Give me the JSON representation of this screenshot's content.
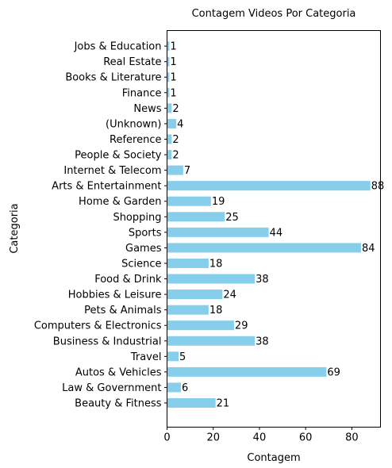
{
  "chart_data": {
    "type": "bar",
    "orientation": "horizontal",
    "title": "Contagem Videos Por Categoria",
    "xlabel": "Contagem",
    "ylabel": "Categoria",
    "xlim": [
      0,
      92.4
    ],
    "xticks": [
      0,
      20,
      40,
      60,
      80
    ],
    "bar_color": "#87ceeb",
    "grid": false,
    "categories": [
      "Beauty & Fitness",
      "Law & Government",
      "Autos & Vehicles",
      "Travel",
      "Business & Industrial",
      "Computers & Electronics",
      "Pets & Animals",
      "Hobbies & Leisure",
      "Food & Drink",
      "Science",
      "Games",
      "Sports",
      "Shopping",
      "Home & Garden",
      "Arts & Entertainment",
      "Internet & Telecom",
      "People & Society",
      "Reference",
      "(Unknown)",
      "News",
      "Finance",
      "Books & Literature",
      "Real Estate",
      "Jobs & Education"
    ],
    "values": [
      21,
      6,
      69,
      5,
      38,
      29,
      18,
      24,
      38,
      18,
      84,
      44,
      25,
      19,
      88,
      7,
      2,
      2,
      4,
      2,
      1,
      1,
      1,
      1
    ]
  }
}
